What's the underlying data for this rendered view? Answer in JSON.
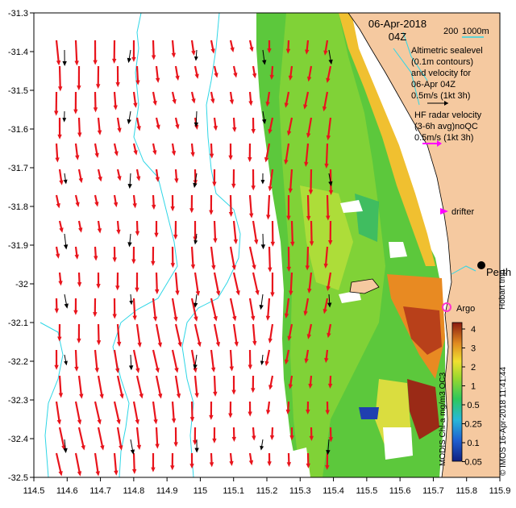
{
  "map": {
    "title_date": "06-Apr-2018",
    "title_time": "04Z",
    "lon_ticks": [
      "114.5",
      "114.6",
      "114.7",
      "114.8",
      "114.9",
      "115",
      "115.1",
      "115.2",
      "115.3",
      "115.4",
      "115.5",
      "115.6",
      "115.7",
      "115.8",
      "115.9"
    ],
    "lat_ticks": [
      "-31.3",
      "-31.4",
      "-31.5",
      "-31.6",
      "-31.7",
      "-31.8",
      "-31.9",
      "-32",
      "-32.1",
      "-32.2",
      "-32.3",
      "-32.4",
      "-32.5"
    ]
  },
  "legend": {
    "depth_200": "200",
    "depth_1000": "1000m",
    "sealevel_1": "Altimetric sealevel",
    "sealevel_2": "(0.1m contours)",
    "sealevel_3": "and velocity for",
    "sealevel_4": "06-Apr 04Z",
    "scale_1": "0.5m/s (1kt 3h)",
    "hf_1": "HF radar velocity",
    "hf_2": "(3-6h avg)noQC",
    "hf_3": "0.5m/s (1kt 3h)",
    "drifter": "drifter",
    "city": "Perth",
    "argo": "Argo",
    "attrib": "Hobart tmp"
  },
  "colorbar": {
    "label": "MODIS Chl-a mg/m3 OC3",
    "ticks": [
      "4",
      "3",
      "2",
      "1",
      "0.5",
      "0.25",
      "0.1",
      "0.05"
    ]
  },
  "credit": "© IMOS 16-Apr-2018 11:41:44",
  "colors": {
    "land": "#f5c9a0",
    "hf_arrow": "#e8141c",
    "alt_arrow": "#000000",
    "contour": "#2fd6e6",
    "drifter": "#ff00ff",
    "argo": "#ff33cc"
  }
}
